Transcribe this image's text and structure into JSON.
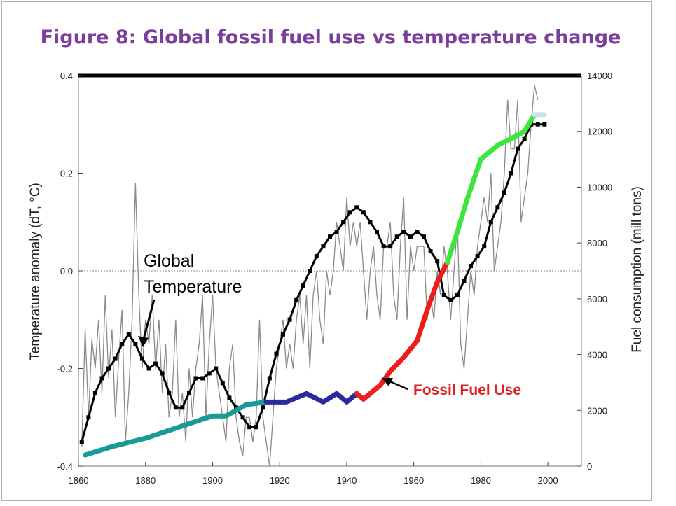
{
  "chart_data": {
    "type": "line",
    "title": "Figure 8: Global fossil fuel use vs temperature change",
    "xlabel": "",
    "ylabel": "Temperature anomaly (dT, °C)",
    "y2label": "Fuel consumption (mill tons)",
    "xlim": [
      1860,
      2010
    ],
    "ylim": [
      -0.4,
      0.4
    ],
    "y2lim": [
      0,
      14000
    ],
    "x_ticks": [
      "1860",
      "1880",
      "1900",
      "1920",
      "1940",
      "1960",
      "1980",
      "2000"
    ],
    "y_ticks": [
      "-0.4",
      "-0.2",
      "0.0",
      "0.2",
      "0.4"
    ],
    "y2_ticks": [
      "0",
      "2000",
      "4000",
      "6000",
      "8000",
      "10000",
      "12000",
      "14000"
    ],
    "grid": false,
    "reference_line_y": 0.0,
    "annotations": {
      "global_temperature": [
        "Global",
        "Temperature"
      ],
      "fossil_fuel_use": "Fossil Fuel Use"
    },
    "series": [
      {
        "axis": "left",
        "style": "thin-gray",
        "x": [
          1861,
          1862,
          1863,
          1864,
          1865,
          1866,
          1867,
          1868,
          1869,
          1870,
          1871,
          1872,
          1873,
          1874,
          1875,
          1876,
          1877,
          1878,
          1879,
          1880,
          1881,
          1882,
          1883,
          1884,
          1885,
          1886,
          1887,
          1888,
          1889,
          1890,
          1891,
          1892,
          1893,
          1894,
          1895,
          1896,
          1897,
          1898,
          1899,
          1900,
          1901,
          1902,
          1903,
          1904,
          1905,
          1906,
          1907,
          1908,
          1909,
          1910,
          1911,
          1912,
          1913,
          1914,
          1915,
          1916,
          1917,
          1918,
          1919,
          1920,
          1921,
          1922,
          1923,
          1924,
          1925,
          1926,
          1927,
          1928,
          1929,
          1930,
          1931,
          1932,
          1933,
          1934,
          1935,
          1936,
          1937,
          1938,
          1939,
          1940,
          1941,
          1942,
          1943,
          1944,
          1945,
          1946,
          1947,
          1948,
          1949,
          1950,
          1951,
          1952,
          1953,
          1954,
          1955,
          1956,
          1957,
          1958,
          1959,
          1960,
          1961,
          1962,
          1963,
          1964,
          1965,
          1966,
          1967,
          1968,
          1969,
          1970,
          1971,
          1972,
          1973,
          1974,
          1975,
          1976,
          1977,
          1978,
          1979,
          1980,
          1981,
          1982,
          1983,
          1984,
          1985,
          1986,
          1987,
          1988,
          1989,
          1990,
          1991,
          1992,
          1993,
          1994,
          1995,
          1996,
          1997
        ],
        "y": [
          -0.36,
          -0.12,
          -0.3,
          -0.14,
          -0.2,
          -0.1,
          -0.25,
          -0.05,
          -0.22,
          -0.12,
          -0.3,
          -0.18,
          -0.08,
          -0.35,
          -0.25,
          -0.1,
          0.18,
          -0.05,
          -0.2,
          -0.1,
          -0.15,
          -0.05,
          -0.2,
          -0.1,
          -0.25,
          -0.15,
          -0.3,
          -0.25,
          -0.1,
          -0.3,
          -0.25,
          -0.35,
          -0.2,
          -0.3,
          -0.2,
          -0.15,
          -0.05,
          -0.3,
          -0.15,
          -0.05,
          -0.2,
          -0.25,
          -0.3,
          -0.35,
          -0.2,
          -0.15,
          -0.3,
          -0.35,
          -0.38,
          -0.3,
          -0.3,
          -0.35,
          -0.3,
          -0.1,
          -0.3,
          -0.35,
          -0.4,
          -0.3,
          -0.2,
          -0.15,
          -0.1,
          -0.2,
          -0.15,
          -0.2,
          -0.1,
          -0.05,
          -0.15,
          -0.05,
          -0.2,
          -0.05,
          0.0,
          -0.1,
          -0.15,
          0.0,
          -0.05,
          0.0,
          0.1,
          0.05,
          0.0,
          0.15,
          0.05,
          0.1,
          0.05,
          0.1,
          0.0,
          -0.1,
          0.0,
          0.05,
          -0.05,
          -0.1,
          0.05,
          0.05,
          0.1,
          -0.05,
          -0.1,
          0.05,
          0.15,
          -0.1,
          0.05,
          0.0,
          0.05,
          0.05,
          0.05,
          -0.1,
          -0.05,
          -0.1,
          0.0,
          -0.05,
          0.05,
          0.0,
          -0.1,
          0.0,
          0.1,
          -0.15,
          -0.2,
          -0.1,
          0.0,
          -0.05,
          0.05,
          0.1,
          0.15,
          0.1,
          0.2,
          0.0,
          0.05,
          0.1,
          0.2,
          0.35,
          0.25,
          0.25,
          0.35,
          0.1,
          0.15,
          0.2,
          0.3,
          0.38,
          0.35
        ]
      },
      {
        "axis": "left",
        "style": "black-dotted",
        "x": [
          1861,
          1863,
          1865,
          1867,
          1869,
          1871,
          1873,
          1875,
          1877,
          1879,
          1881,
          1883,
          1885,
          1887,
          1889,
          1891,
          1893,
          1895,
          1897,
          1899,
          1901,
          1903,
          1905,
          1907,
          1909,
          1911,
          1913,
          1915,
          1917,
          1919,
          1921,
          1923,
          1925,
          1927,
          1929,
          1931,
          1933,
          1935,
          1937,
          1939,
          1941,
          1943,
          1945,
          1947,
          1949,
          1951,
          1953,
          1955,
          1957,
          1959,
          1961,
          1963,
          1965,
          1967,
          1969,
          1971,
          1973,
          1975,
          1977,
          1979,
          1981,
          1983,
          1985,
          1987,
          1989,
          1991,
          1993,
          1995,
          1997,
          1999
        ],
        "y": [
          -0.35,
          -0.3,
          -0.25,
          -0.22,
          -0.2,
          -0.18,
          -0.15,
          -0.13,
          -0.15,
          -0.18,
          -0.2,
          -0.19,
          -0.21,
          -0.25,
          -0.28,
          -0.28,
          -0.25,
          -0.22,
          -0.22,
          -0.21,
          -0.2,
          -0.23,
          -0.26,
          -0.28,
          -0.3,
          -0.32,
          -0.32,
          -0.28,
          -0.22,
          -0.17,
          -0.13,
          -0.1,
          -0.06,
          -0.03,
          0.0,
          0.03,
          0.05,
          0.07,
          0.08,
          0.1,
          0.12,
          0.13,
          0.12,
          0.1,
          0.08,
          0.05,
          0.05,
          0.07,
          0.08,
          0.07,
          0.08,
          0.07,
          0.04,
          0.02,
          -0.05,
          -0.06,
          -0.05,
          -0.02,
          0.01,
          0.03,
          0.05,
          0.1,
          0.13,
          0.16,
          0.2,
          0.25,
          0.27,
          0.3,
          0.3,
          0.3
        ]
      },
      {
        "axis": "right",
        "style": "fuel-thick",
        "colors": [
          "#1a9a96",
          "#2b2ba0",
          "#ee1c1c",
          "#3ce63c",
          "#c8e4ea"
        ],
        "x": [
          1862,
          1870,
          1880,
          1890,
          1900,
          1904,
          1910,
          1916,
          1922,
          1928,
          1933,
          1937,
          1940,
          1943,
          1945,
          1947,
          1950,
          1953,
          1957,
          1961,
          1964,
          1967,
          1970,
          1973,
          1976,
          1980,
          1985,
          1990,
          1993,
          1996,
          1999
        ],
        "y": [
          400,
          700,
          1000,
          1400,
          1800,
          1800,
          2200,
          2300,
          2300,
          2600,
          2300,
          2600,
          2300,
          2600,
          2400,
          2600,
          2900,
          3400,
          3900,
          4500,
          5600,
          6600,
          7300,
          8400,
          9600,
          11000,
          11500,
          11800,
          12000,
          12600,
          12600
        ],
        "segment_breaks_x": [
          1916,
          1943,
          1970,
          1996
        ]
      }
    ]
  }
}
